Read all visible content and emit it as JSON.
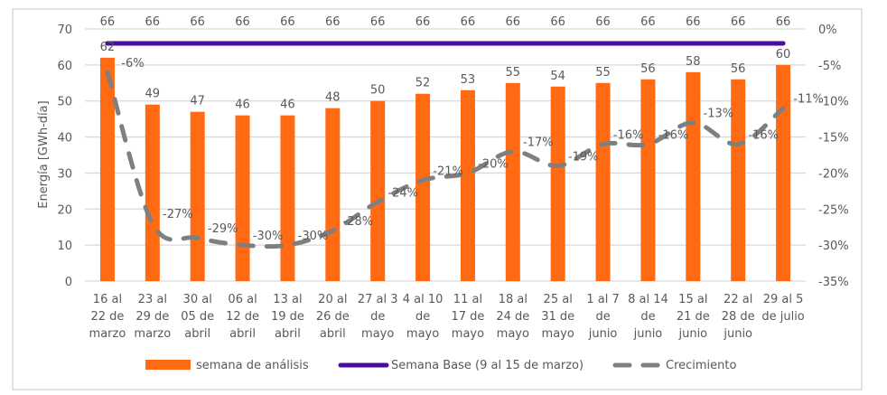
{
  "chart_data": {
    "type": "bar+line",
    "title": "",
    "ylabel": "Energía [GWh-día]",
    "ylabel_right": "",
    "ylim": [
      0,
      70
    ],
    "yticks": [
      0,
      10,
      20,
      30,
      40,
      50,
      60,
      70
    ],
    "ylim_right": [
      -35,
      0
    ],
    "yticks_right": [
      "0%",
      "-5%",
      "-10%",
      "-15%",
      "-20%",
      "-25%",
      "-30%",
      "-35%"
    ],
    "grid": true,
    "legend_position": "bottom",
    "categories": [
      [
        "16 al",
        "22 de",
        "marzo"
      ],
      [
        "23 al",
        "29 de",
        "marzo"
      ],
      [
        "30 al",
        "05 de",
        "abril"
      ],
      [
        "06 al",
        "12 de",
        "abril"
      ],
      [
        "13 al",
        "19 de",
        "abril"
      ],
      [
        "20 al",
        "26 de",
        "abril"
      ],
      [
        "27 al 3",
        "de",
        "mayo"
      ],
      [
        "4 al 10",
        "de",
        "mayo"
      ],
      [
        "11 al",
        "17 de",
        "mayo"
      ],
      [
        "18 al",
        "24 de",
        "mayo"
      ],
      [
        "25 al",
        "31 de",
        "mayo"
      ],
      [
        "1 al 7",
        "de",
        "junio"
      ],
      [
        "8 al 14",
        "de",
        "junio"
      ],
      [
        "15 al",
        "21 de",
        "junio"
      ],
      [
        "22 al",
        "28 de",
        "junio"
      ],
      [
        "29 al 5",
        "de julio"
      ]
    ],
    "series": [
      {
        "name": "semana de análisis",
        "type": "bar",
        "axis": "left",
        "color": "#FF6A13",
        "values": [
          62,
          49,
          47,
          46,
          46,
          48,
          50,
          52,
          53,
          55,
          54,
          55,
          56,
          58,
          56,
          60
        ]
      },
      {
        "name": "Semana Base (9 al 15 de marzo)",
        "type": "line",
        "axis": "left",
        "color": "#4B0B9E",
        "values": [
          66,
          66,
          66,
          66,
          66,
          66,
          66,
          66,
          66,
          66,
          66,
          66,
          66,
          66,
          66,
          66
        ]
      },
      {
        "name": "Crecimiento",
        "type": "line-dashed",
        "axis": "right",
        "color": "#7F7F7F",
        "values": [
          -6,
          -27,
          -29,
          -30,
          -30,
          -28,
          -24,
          -21,
          -20,
          -17,
          -19,
          -16,
          -16,
          -13,
          -16,
          -11
        ],
        "labels": [
          "-6%",
          "-27%",
          "-29%",
          "-30%",
          "-30%",
          "-28%",
          "-24%",
          "-21%",
          "-20%",
          "-17%",
          "-19%",
          "-16%",
          "-16%",
          "-13%",
          "-16%",
          "-11%"
        ]
      }
    ]
  }
}
